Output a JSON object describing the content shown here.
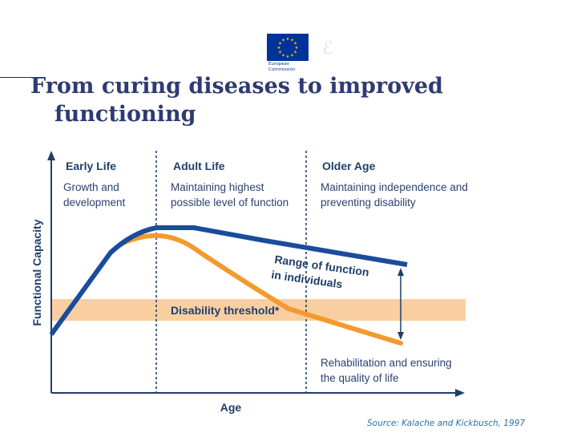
{
  "header": {
    "logo_name": "eu-flag-icon",
    "logo_text_line1": "European",
    "logo_text_line2": "Commission",
    "title_line1": "From curing diseases to improved",
    "title_line2": "functioning"
  },
  "colors": {
    "title": "#2e3b73",
    "navy": "#1f3f6a",
    "text": "#2a4270",
    "blue_line": "#1a4c9c",
    "orange_line": "#f39a2e",
    "band": "#f9cfa2",
    "eu_blue": "#003399",
    "eu_gold": "#ffcc00"
  },
  "diagram": {
    "y_axis_label": "Functional Capacity",
    "x_axis_label": "Age",
    "stages": [
      {
        "heading": "Early Life",
        "desc_line1": "Growth and",
        "desc_line2": "development"
      },
      {
        "heading": "Adult Life",
        "desc_line1": "Maintaining highest",
        "desc_line2": "possible level of function"
      },
      {
        "heading": "Older Age",
        "desc_line1": "Maintaining independence and",
        "desc_line2": "preventing disability"
      }
    ],
    "threshold_label": "Disability threshold*",
    "range_label_line1": "Range of function",
    "range_label_line2": "in individuals",
    "rehab_line1": "Rehabilitation and ensuring",
    "rehab_line2": "the quality of life"
  },
  "source": "Source: Kalache and Kickbusch, 1997"
}
